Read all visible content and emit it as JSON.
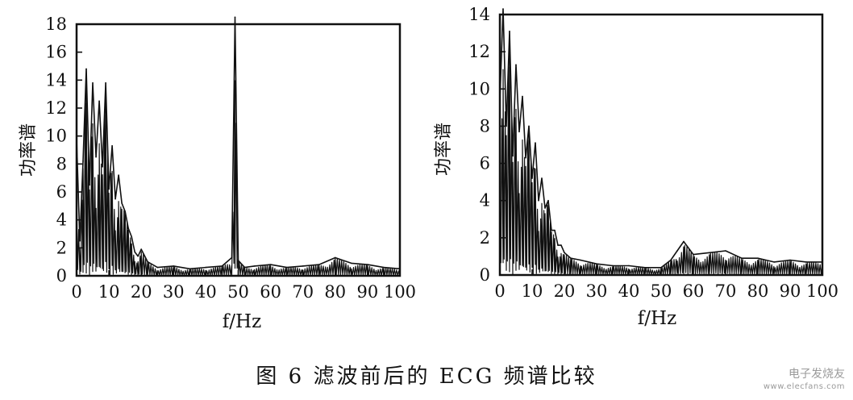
{
  "chart_data": [
    {
      "type": "line",
      "title": "",
      "xlabel": "f/Hz",
      "ylabel": "功率谱",
      "xlim": [
        0,
        100
      ],
      "ylim": [
        0,
        18
      ],
      "xticks": [
        0,
        10,
        20,
        30,
        40,
        50,
        60,
        70,
        80,
        90,
        100
      ],
      "yticks": [
        0,
        2,
        4,
        6,
        8,
        10,
        12,
        14,
        16,
        18
      ],
      "x": [
        0,
        1,
        2,
        3,
        4,
        5,
        6,
        7,
        8,
        9,
        10,
        11,
        12,
        13,
        14,
        15,
        16,
        17,
        18,
        19,
        20,
        22,
        25,
        30,
        35,
        40,
        45,
        48,
        49,
        50,
        52,
        55,
        60,
        65,
        70,
        75,
        80,
        85,
        90,
        95,
        100
      ],
      "y": [
        9.8,
        2.5,
        8.2,
        14.8,
        6.5,
        13.8,
        8.5,
        12.5,
        7.8,
        13.8,
        6.2,
        9.3,
        5.5,
        7.2,
        5.2,
        4.6,
        3.4,
        2.8,
        1.7,
        1.4,
        1.9,
        1.0,
        0.6,
        0.7,
        0.5,
        0.6,
        0.7,
        1.3,
        18.5,
        1.1,
        0.6,
        0.7,
        0.8,
        0.6,
        0.7,
        0.8,
        1.3,
        0.9,
        0.8,
        0.6,
        0.5
      ]
    },
    {
      "type": "line",
      "title": "",
      "xlabel": "f/Hz",
      "ylabel": "功率谱",
      "xlim": [
        0,
        100
      ],
      "ylim": [
        0,
        14
      ],
      "xticks": [
        0,
        10,
        20,
        30,
        40,
        50,
        60,
        70,
        80,
        90,
        100
      ],
      "yticks": [
        0,
        2,
        4,
        6,
        8,
        10,
        12,
        14
      ],
      "x": [
        0,
        1,
        2,
        3,
        4,
        5,
        6,
        7,
        8,
        9,
        10,
        11,
        12,
        13,
        14,
        15,
        16,
        17,
        18,
        19,
        20,
        22,
        25,
        30,
        35,
        40,
        45,
        50,
        53,
        55,
        57,
        60,
        65,
        70,
        75,
        80,
        85,
        90,
        95,
        100
      ],
      "y": [
        9.4,
        14.3,
        8.0,
        13.1,
        6.4,
        11.3,
        7.7,
        9.6,
        6.3,
        8.0,
        5.2,
        7.1,
        4.0,
        5.2,
        3.6,
        4.0,
        2.4,
        2.4,
        1.6,
        1.6,
        1.2,
        0.9,
        0.8,
        0.6,
        0.5,
        0.5,
        0.4,
        0.4,
        0.8,
        1.3,
        1.8,
        1.1,
        1.2,
        1.3,
        0.9,
        0.9,
        0.7,
        0.8,
        0.7,
        0.7
      ]
    }
  ],
  "caption": "图 6   滤波前后的 ECG 频谱比较",
  "watermark": {
    "text": "电子发烧友",
    "sub": "www.elecfans.com"
  },
  "colors": {
    "ink": "#111111",
    "background": "#ffffff",
    "watermark": "#9a9a9a"
  }
}
